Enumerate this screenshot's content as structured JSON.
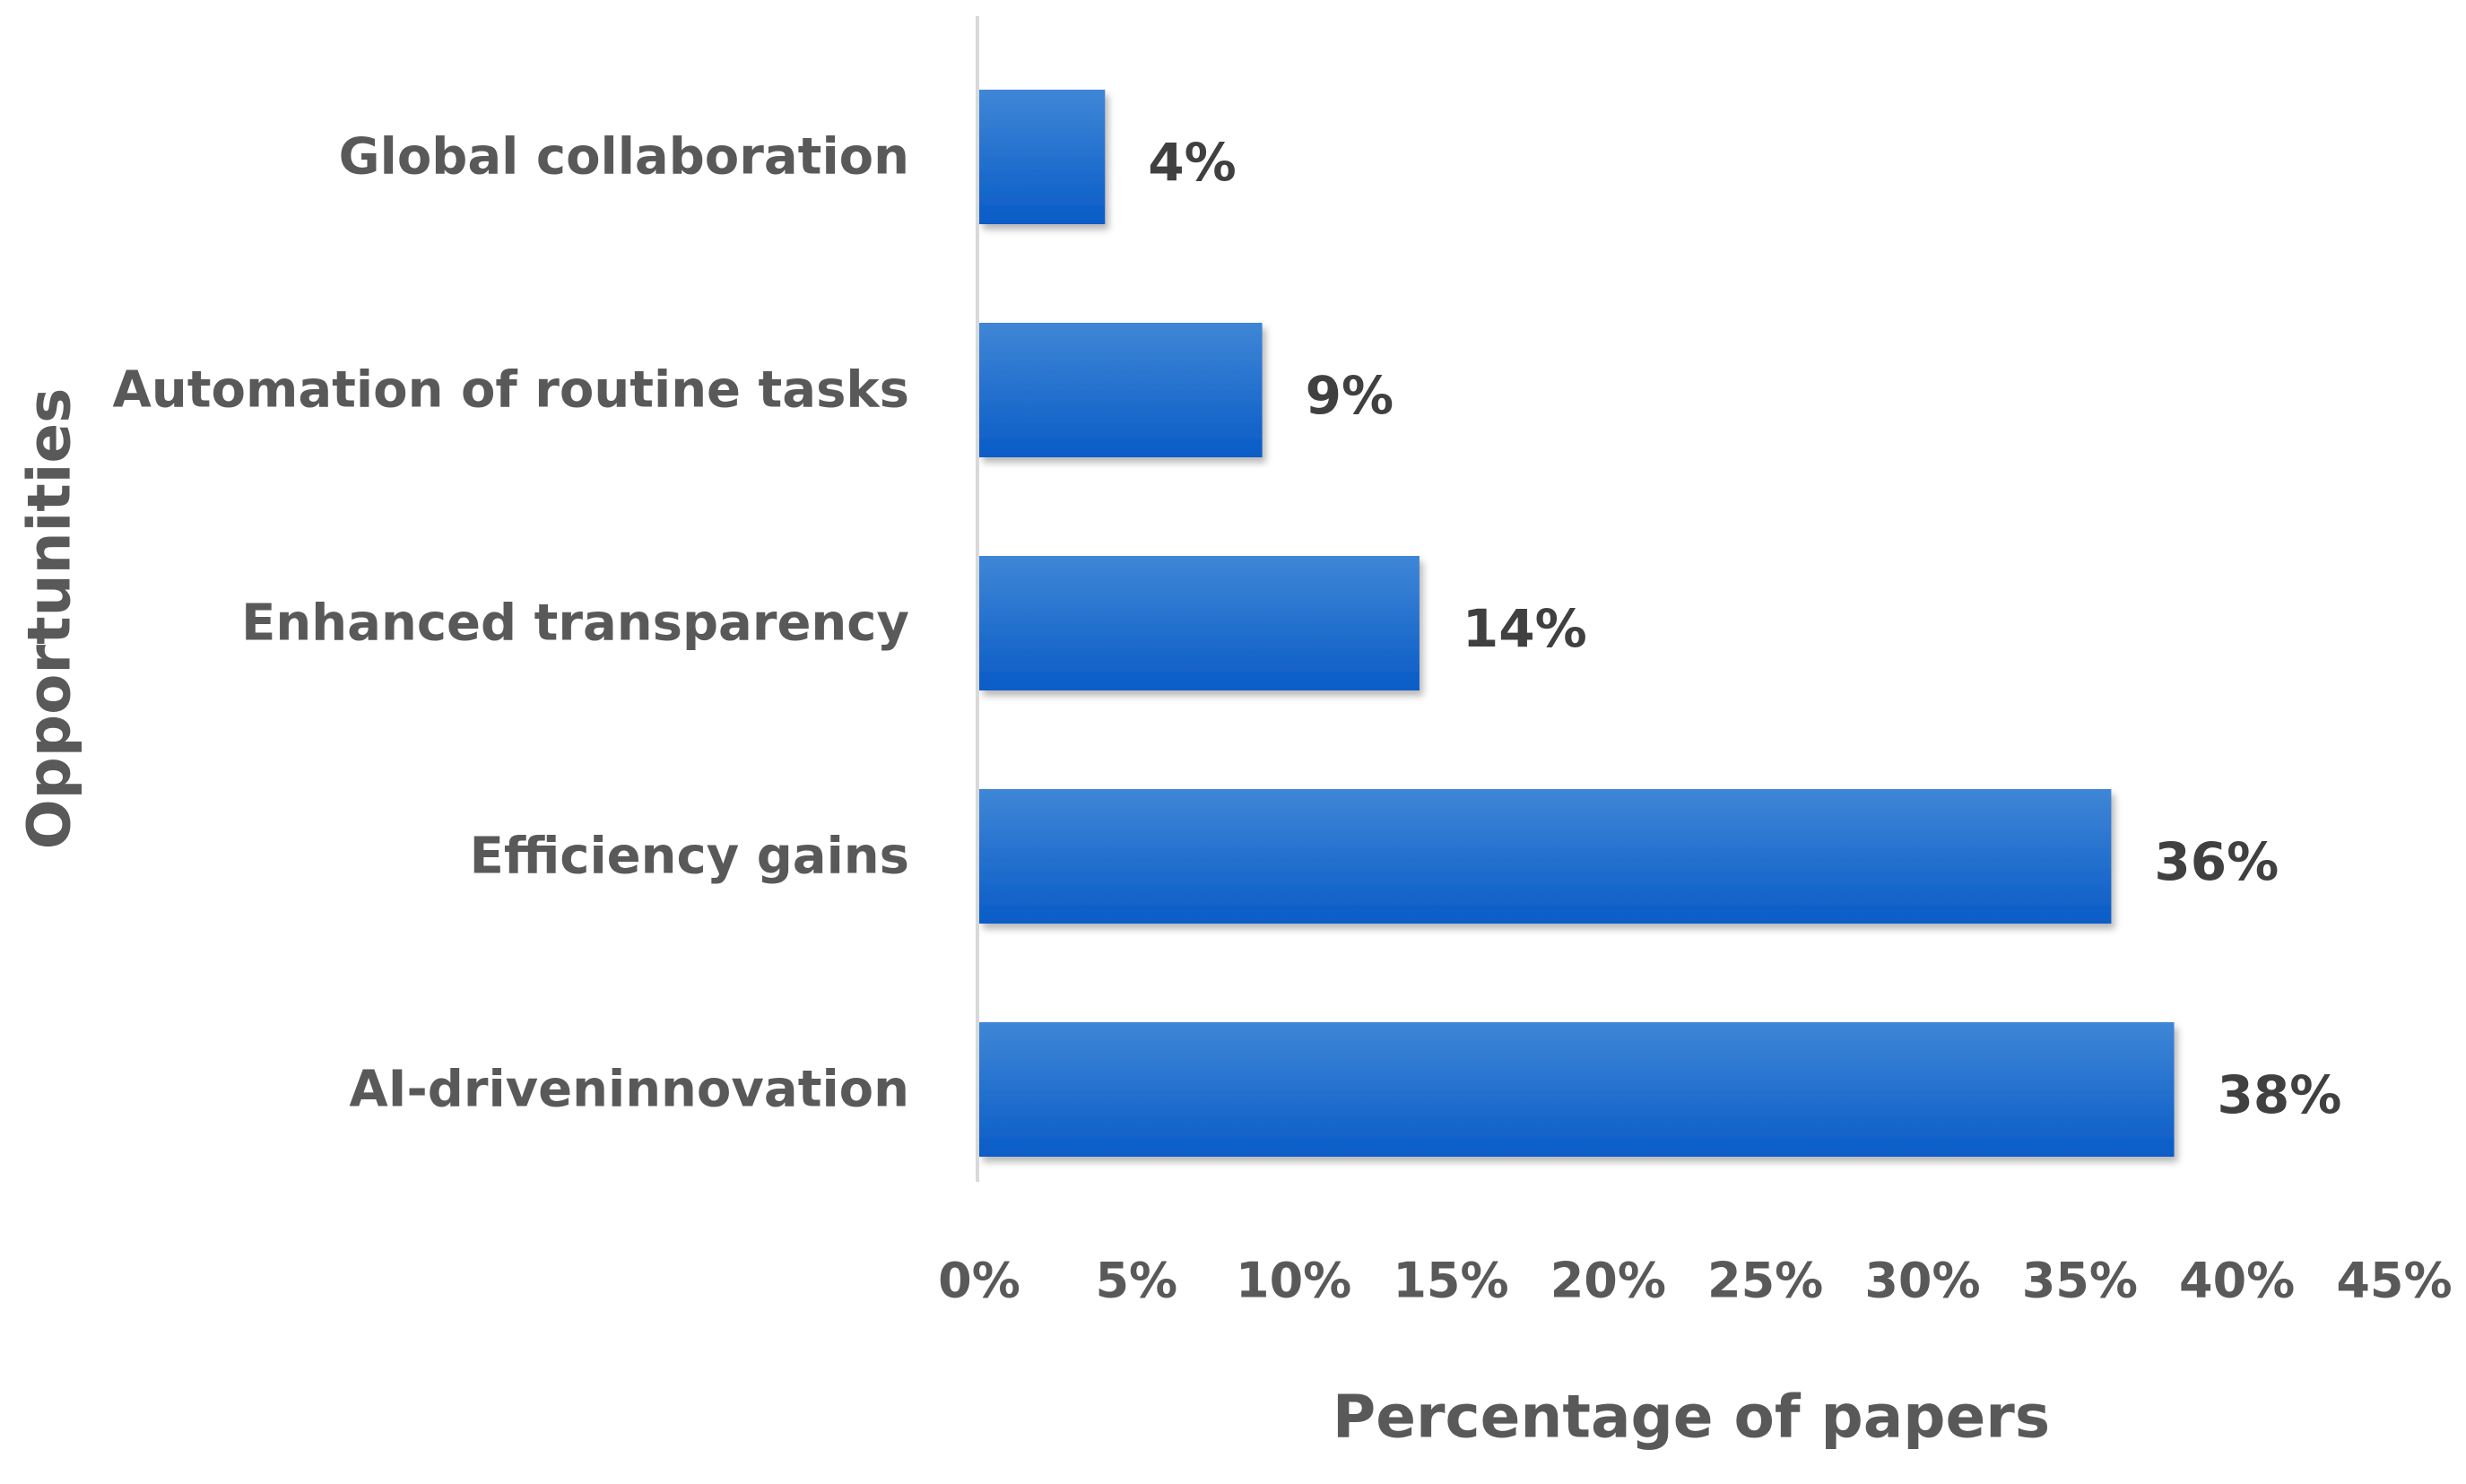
{
  "chart_data": {
    "type": "bar",
    "orientation": "horizontal",
    "categories": [
      "Global collaboration",
      "Automation of routine tasks",
      "Enhanced transparency",
      "Efficiency gains",
      "AI-driveninnovation"
    ],
    "values": [
      4,
      9,
      14,
      36,
      38
    ],
    "data_labels": [
      "4%",
      "9%",
      "14%",
      "36%",
      "38%"
    ],
    "xlabel": "Percentage of papers",
    "ylabel": "Opportunities",
    "xlim": [
      0,
      45
    ],
    "xticks": [
      0,
      5,
      10,
      15,
      20,
      25,
      30,
      35,
      40,
      45
    ],
    "xtick_labels": [
      "0%",
      "5%",
      "10%",
      "15%",
      "20%",
      "25%",
      "30%",
      "35%",
      "40%",
      "45%"
    ],
    "grid": false,
    "legend": "none",
    "colors": {
      "bar_top": "#3f86d6",
      "bar_bottom": "#0a5cc7",
      "axis": "#d9d9d9",
      "text": "#595959",
      "data_label": "#404040"
    }
  }
}
